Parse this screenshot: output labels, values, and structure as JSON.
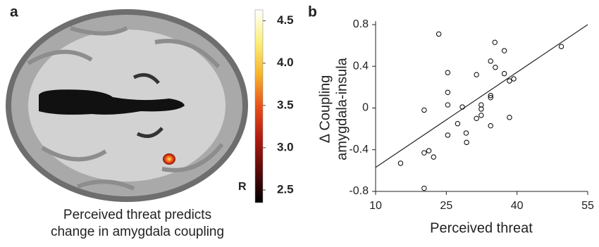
{
  "chart_data": [
    {
      "type": "image",
      "panel_label": "a",
      "orientation_label": "R",
      "caption": [
        "Perceived threat predicts",
        "change in amygdala coupling"
      ],
      "colorbar": {
        "lim": [
          2.35,
          4.63
        ],
        "ticks": [
          2.5,
          {
            "value": 3,
            "label": "3.0"
          },
          3.5,
          {
            "value": 4,
            "label": "4.0"
          },
          4.5
        ],
        "colors": [
          "#000000",
          "#5a0a0a",
          "#b01a10",
          "#e8501a",
          "#f7b52c",
          "#fbf07a",
          "#ffffff"
        ]
      }
    },
    {
      "type": "scatter",
      "panel_label": "b",
      "xlabel": "Perceived threat",
      "ylabel": [
        "Δ Coupling",
        "amygdala-insula"
      ],
      "xlim": [
        10,
        55
      ],
      "xticks": [
        10,
        25,
        40,
        55
      ],
      "ylim": [
        -0.8,
        0.8
      ],
      "yticks": [
        -0.8,
        -0.4,
        0,
        0.4,
        0.8
      ],
      "x": [
        15.3,
        20.3,
        20.3,
        20.3,
        21.3,
        22.3,
        23.4,
        25.3,
        25.3,
        25.3,
        25.3,
        27.4,
        28.4,
        29.2,
        29.3,
        31.4,
        31.4,
        32.4,
        32.4,
        32.4,
        34.4,
        34.4,
        34.4,
        34.4,
        35.3,
        35.4,
        37.3,
        37.3,
        38.4,
        38.4,
        39.3,
        49.4
      ],
      "values": [
        -0.53,
        -0.02,
        -0.43,
        -0.77,
        -0.41,
        -0.47,
        0.71,
        0.34,
        0.15,
        0.03,
        -0.26,
        -0.15,
        0.01,
        -0.24,
        -0.33,
        0.32,
        -0.1,
        0.03,
        -0.01,
        -0.07,
        0.45,
        0.12,
        0.1,
        -0.17,
        0.63,
        0.39,
        0.55,
        0.33,
        -0.09,
        0.26,
        0.28,
        0.59
      ],
      "color": "#000000",
      "trend_line": {
        "x": [
          10,
          55
        ],
        "values": [
          -0.57,
          0.8
        ]
      }
    }
  ]
}
